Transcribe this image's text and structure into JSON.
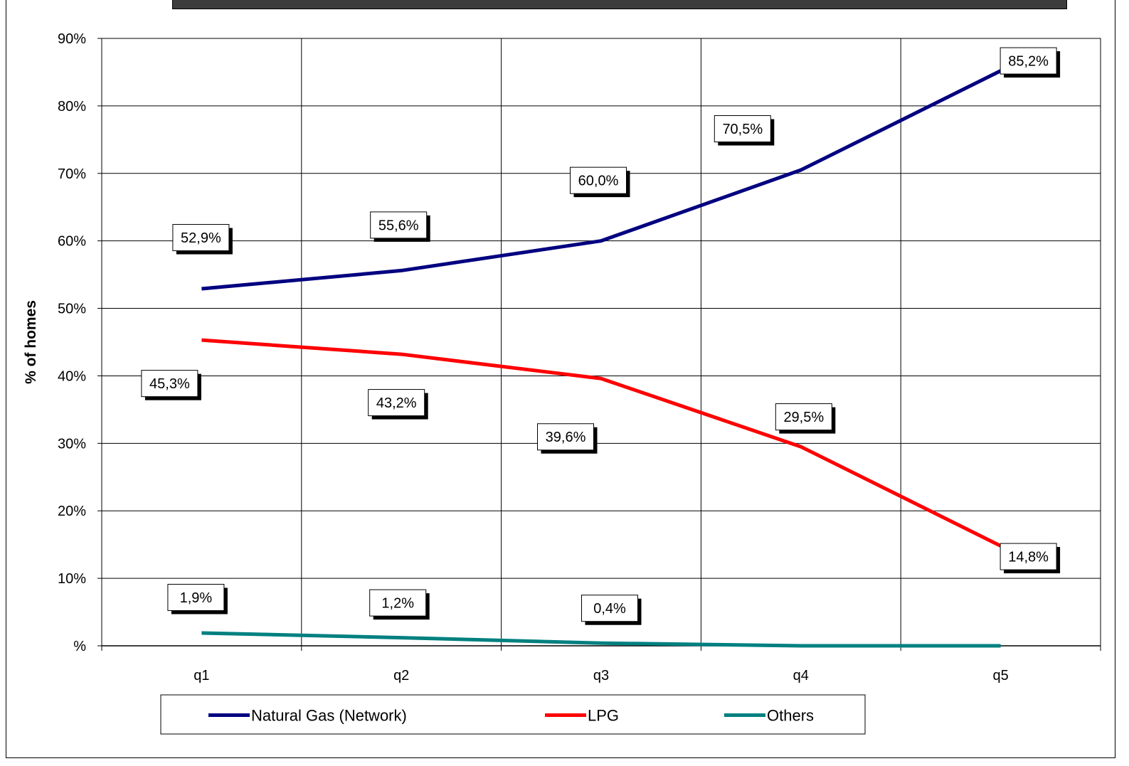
{
  "chart_data": {
    "type": "line",
    "title": "",
    "xlabel": "",
    "ylabel": "% of homes",
    "ylim": [
      0,
      90
    ],
    "y_ticks": [
      0,
      10,
      20,
      30,
      40,
      50,
      60,
      70,
      80,
      90
    ],
    "y_tick_labels": [
      "%",
      "10%",
      "20%",
      "30%",
      "40%",
      "50%",
      "60%",
      "70%",
      "80%",
      "90%"
    ],
    "categories": [
      "q1",
      "q2",
      "q3",
      "q4",
      "q5"
    ],
    "grid": true,
    "legend_position": "bottom",
    "series": [
      {
        "name": "Natural Gas (Network)",
        "color": "#000080",
        "values": [
          52.9,
          55.6,
          60.0,
          70.5,
          85.2
        ],
        "labels": [
          "52,9%",
          "55,6%",
          "60,0%",
          "70,5%",
          "85,2%"
        ]
      },
      {
        "name": "LPG",
        "color": "#ff0000",
        "values": [
          45.3,
          43.2,
          39.6,
          29.5,
          14.8
        ],
        "labels": [
          "45,3%",
          "43,2%",
          "39,6%",
          "29,5%",
          "14,8%"
        ]
      },
      {
        "name": "Others",
        "color": "#008080",
        "values": [
          1.9,
          1.2,
          0.4,
          0.0,
          0.0
        ],
        "labels": [
          "1,9%",
          "1,2%",
          "0,4%",
          "",
          ""
        ]
      }
    ]
  }
}
